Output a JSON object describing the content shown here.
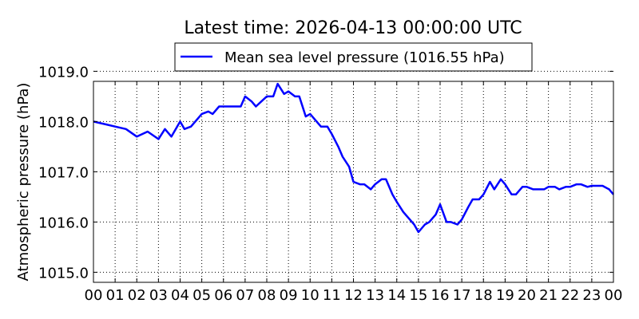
{
  "chart_data": {
    "type": "line",
    "title": "Latest time: 2026-04-13 00:00:00 UTC",
    "xlabel": "",
    "ylabel": "Atmospheric pressure (hPa)",
    "xlim": [
      0,
      24
    ],
    "ylim": [
      1014.8,
      1018.8
    ],
    "xticks": [
      0,
      1,
      2,
      3,
      4,
      5,
      6,
      7,
      8,
      9,
      10,
      11,
      12,
      13,
      14,
      15,
      16,
      17,
      18,
      19,
      20,
      21,
      22,
      23,
      24
    ],
    "xtick_labels": [
      "00",
      "01",
      "02",
      "03",
      "04",
      "05",
      "06",
      "07",
      "08",
      "09",
      "10",
      "11",
      "12",
      "13",
      "14",
      "15",
      "16",
      "17",
      "18",
      "19",
      "20",
      "21",
      "22",
      "23",
      "00"
    ],
    "yticks": [
      1015.0,
      1016.0,
      1017.0,
      1018.0,
      1019.0
    ],
    "ytick_labels": [
      "1015.0",
      "1016.0",
      "1017.0",
      "1018.0",
      "1019.0"
    ],
    "grid": true,
    "legend": "top-center",
    "series": [
      {
        "name": "Mean sea level pressure (1016.55 hPa)",
        "color": "#0000ff",
        "x": [
          0,
          0.5,
          1,
          1.5,
          2,
          2.5,
          3,
          3.3,
          3.6,
          4,
          4.2,
          4.5,
          5,
          5.3,
          5.5,
          5.8,
          6,
          6.5,
          6.8,
          7,
          7.3,
          7.5,
          8,
          8.3,
          8.5,
          8.8,
          9,
          9.3,
          9.5,
          9.8,
          10,
          10.3,
          10.5,
          10.8,
          11,
          11.3,
          11.5,
          11.8,
          12,
          12.3,
          12.5,
          12.8,
          13,
          13.3,
          13.5,
          13.8,
          14,
          14.3,
          14.5,
          14.8,
          15,
          15.3,
          15.5,
          15.8,
          16,
          16.3,
          16.5,
          16.8,
          17,
          17.3,
          17.5,
          17.8,
          18,
          18.3,
          18.5,
          18.8,
          19,
          19.3,
          19.5,
          19.8,
          20,
          20.3,
          20.5,
          20.8,
          21,
          21.3,
          21.5,
          21.8,
          22,
          22.3,
          22.5,
          22.8,
          23,
          23.3,
          23.5,
          23.8,
          24
        ],
        "y": [
          1018.0,
          1017.95,
          1017.9,
          1017.85,
          1017.7,
          1017.8,
          1017.65,
          1017.85,
          1017.7,
          1018.0,
          1017.85,
          1017.9,
          1018.15,
          1018.2,
          1018.15,
          1018.3,
          1018.3,
          1018.3,
          1018.3,
          1018.5,
          1018.4,
          1018.3,
          1018.5,
          1018.5,
          1018.75,
          1018.55,
          1018.6,
          1018.5,
          1018.5,
          1018.1,
          1018.15,
          1018.0,
          1017.9,
          1017.9,
          1017.75,
          1017.5,
          1017.3,
          1017.1,
          1016.8,
          1016.75,
          1016.75,
          1016.65,
          1016.75,
          1016.85,
          1016.85,
          1016.55,
          1016.4,
          1016.2,
          1016.1,
          1015.95,
          1015.8,
          1015.95,
          1016.0,
          1016.15,
          1016.35,
          1016.0,
          1016.0,
          1015.95,
          1016.05,
          1016.3,
          1016.45,
          1016.45,
          1016.55,
          1016.8,
          1016.65,
          1016.85,
          1016.75,
          1016.55,
          1016.55,
          1016.7,
          1016.7,
          1016.65,
          1016.65,
          1016.65,
          1016.7,
          1016.7,
          1016.65,
          1016.7,
          1016.7,
          1016.75,
          1016.75,
          1016.7,
          1016.72,
          1016.72,
          1016.72,
          1016.65,
          1016.55
        ]
      }
    ]
  }
}
